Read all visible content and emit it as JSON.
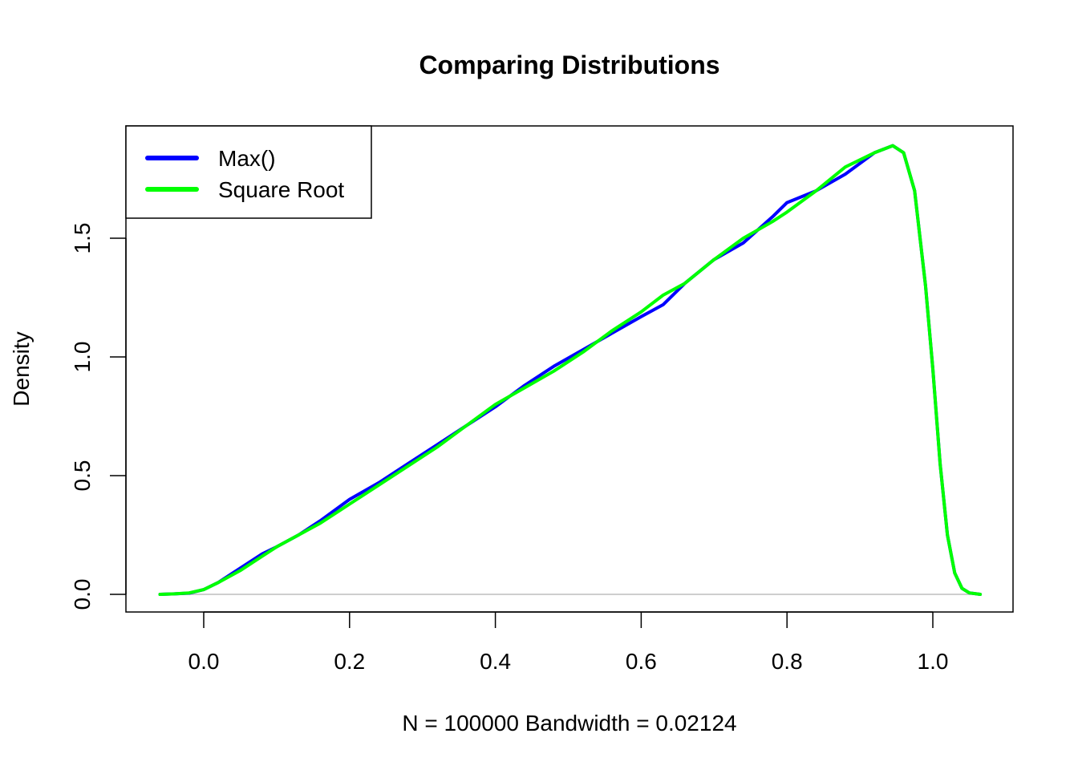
{
  "chart_data": {
    "type": "line",
    "title": "Comparing Distributions",
    "xlabel": "N = 100000   Bandwidth = 0.02124",
    "ylabel": "Density",
    "xlim": [
      -0.06,
      1.065
    ],
    "ylim": [
      0,
      1.91
    ],
    "x_ticks": [
      0.0,
      0.2,
      0.4,
      0.6,
      0.8,
      1.0
    ],
    "x_tick_labels": [
      "0.0",
      "0.2",
      "0.4",
      "0.6",
      "0.8",
      "1.0"
    ],
    "y_ticks": [
      0.0,
      0.5,
      1.0,
      1.5
    ],
    "y_tick_labels": [
      "0.0",
      "0.5",
      "1.0",
      "1.5"
    ],
    "zero_line": true,
    "grid": false,
    "legend": {
      "position": "top-left"
    },
    "series": [
      {
        "name": "Max()",
        "color": "#0000ff",
        "x": [
          -0.06,
          -0.04,
          -0.02,
          0.0,
          0.02,
          0.05,
          0.08,
          0.1,
          0.13,
          0.16,
          0.2,
          0.24,
          0.28,
          0.32,
          0.36,
          0.4,
          0.44,
          0.48,
          0.52,
          0.56,
          0.6,
          0.63,
          0.66,
          0.7,
          0.74,
          0.78,
          0.8,
          0.84,
          0.88,
          0.92,
          0.945,
          0.96,
          0.975,
          0.99,
          1.0,
          1.01,
          1.02,
          1.03,
          1.04,
          1.05,
          1.065
        ],
        "y": [
          0.0,
          0.002,
          0.005,
          0.02,
          0.05,
          0.11,
          0.17,
          0.2,
          0.25,
          0.31,
          0.4,
          0.47,
          0.55,
          0.63,
          0.71,
          0.79,
          0.88,
          0.96,
          1.03,
          1.1,
          1.17,
          1.22,
          1.31,
          1.41,
          1.48,
          1.59,
          1.65,
          1.7,
          1.77,
          1.86,
          1.89,
          1.86,
          1.7,
          1.3,
          0.95,
          0.55,
          0.25,
          0.09,
          0.025,
          0.006,
          0.0
        ]
      },
      {
        "name": "Square Root",
        "color": "#00ff00",
        "x": [
          -0.06,
          -0.04,
          -0.02,
          0.0,
          0.02,
          0.05,
          0.08,
          0.1,
          0.13,
          0.16,
          0.2,
          0.24,
          0.28,
          0.32,
          0.36,
          0.4,
          0.44,
          0.48,
          0.52,
          0.56,
          0.6,
          0.63,
          0.66,
          0.7,
          0.74,
          0.78,
          0.8,
          0.84,
          0.88,
          0.92,
          0.945,
          0.96,
          0.975,
          0.99,
          1.0,
          1.01,
          1.02,
          1.03,
          1.04,
          1.05,
          1.065
        ],
        "y": [
          0.0,
          0.002,
          0.006,
          0.02,
          0.05,
          0.1,
          0.16,
          0.2,
          0.25,
          0.3,
          0.38,
          0.46,
          0.54,
          0.62,
          0.71,
          0.8,
          0.87,
          0.94,
          1.02,
          1.11,
          1.19,
          1.26,
          1.31,
          1.41,
          1.5,
          1.57,
          1.61,
          1.7,
          1.8,
          1.86,
          1.89,
          1.86,
          1.7,
          1.3,
          0.95,
          0.55,
          0.25,
          0.09,
          0.025,
          0.006,
          0.0
        ]
      }
    ]
  }
}
